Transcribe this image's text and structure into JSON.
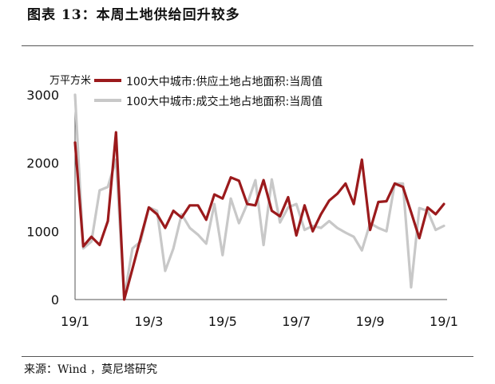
{
  "figure": {
    "title": "图表 13：本周土地供给回升较多",
    "source": "来源：Wind ，莫尼塔研究"
  },
  "chart_data": {
    "type": "line",
    "unit_label": "万平方米",
    "ylim": [
      0,
      3000
    ],
    "y_ticks": [
      "0",
      "1000",
      "2000",
      "3000"
    ],
    "x_ticks": [
      "19/1",
      "19/3",
      "19/5",
      "19/7",
      "19/9",
      "19/1"
    ],
    "x_tick_index": [
      0,
      9,
      18,
      27,
      36,
      45
    ],
    "grid": false,
    "legend_position": "top",
    "series": [
      {
        "name": "100大中城市:供应土地占地面积:当周值",
        "color": "#9b1a1c",
        "values": [
          2300,
          780,
          920,
          800,
          1150,
          2450,
          0,
          450,
          900,
          1350,
          1250,
          1050,
          1300,
          1200,
          1380,
          1380,
          1170,
          1540,
          1480,
          1790,
          1740,
          1400,
          1380,
          1750,
          1300,
          1220,
          1500,
          940,
          1380,
          1000,
          1250,
          1450,
          1550,
          1700,
          1400,
          2050,
          1020,
          1430,
          1440,
          1700,
          1650,
          1280,
          900,
          1350,
          1250,
          1400
        ]
      },
      {
        "name": "100大中城市:成交土地占地面积:当周值",
        "color": "#c8c8c8",
        "values": [
          3000,
          750,
          850,
          1600,
          1650,
          2050,
          30,
          750,
          850,
          1350,
          1300,
          420,
          750,
          1250,
          1050,
          950,
          820,
          1400,
          650,
          1480,
          1120,
          1400,
          1750,
          800,
          1760,
          1130,
          1350,
          1400,
          1020,
          1080,
          1050,
          1150,
          1050,
          980,
          920,
          720,
          1120,
          1050,
          1000,
          1700,
          1700,
          180,
          1340,
          1300,
          1020,
          1080
        ]
      }
    ]
  }
}
